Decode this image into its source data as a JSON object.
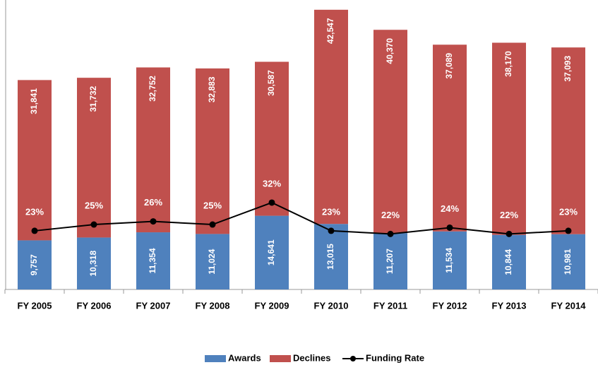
{
  "chart_data": {
    "type": "bar",
    "categories": [
      "FY 2005",
      "FY 2006",
      "FY 2007",
      "FY 2008",
      "FY 2009",
      "FY 2010",
      "FY 2011",
      "FY 2012",
      "FY 2013",
      "FY 2014"
    ],
    "series": [
      {
        "name": "Awards",
        "color": "#4f81bd",
        "values": [
          9757,
          10318,
          11354,
          11024,
          14641,
          13015,
          11207,
          11534,
          10844,
          10981
        ],
        "value_labels": [
          "9,757",
          "10,318",
          "11,354",
          "11,024",
          "14,641",
          "13,015",
          "11,207",
          "11,534",
          "10,844",
          "10,981"
        ]
      },
      {
        "name": "Declines",
        "color": "#c0504d",
        "values": [
          31841,
          31732,
          32752,
          32883,
          30587,
          42547,
          40370,
          37089,
          38170,
          37093
        ],
        "value_labels": [
          "31,841",
          "31,732",
          "32,752",
          "32,883",
          "30,587",
          "42,547",
          "40,370",
          "37,089",
          "38,170",
          "37,093"
        ]
      },
      {
        "name": "Funding Rate",
        "color": "#000000",
        "axis": "y2",
        "values": [
          23,
          25,
          26,
          25,
          32,
          23,
          22,
          24,
          22,
          23
        ],
        "value_labels": [
          "23%",
          "25%",
          "26%",
          "25%",
          "32%",
          "23%",
          "22%",
          "24%",
          "22%",
          "23%"
        ]
      }
    ],
    "ylim": [
      0,
      57500
    ],
    "y2lim": [
      4.3,
      96.6
    ],
    "stacked": true
  }
}
